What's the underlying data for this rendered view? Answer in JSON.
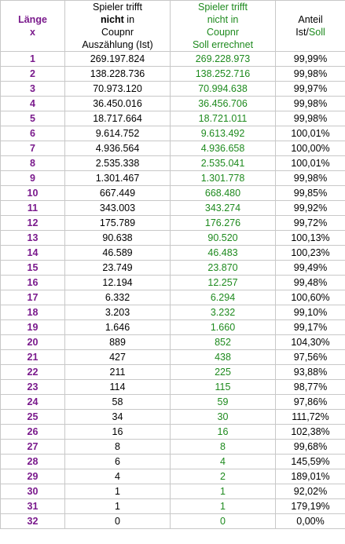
{
  "header": {
    "length": {
      "line1": "Länge",
      "line2": "x"
    },
    "ist": {
      "line1": "Spieler trifft",
      "line2_bold": "nicht",
      "line2_rest": " in",
      "line3": "Coupnr",
      "line4": "Auszählung (Ist)"
    },
    "soll": {
      "line1": "Spieler trifft",
      "line2": "nicht in",
      "line3": "Coupnr",
      "line4": "Soll errechnet"
    },
    "ratio": {
      "line1": "Anteil",
      "line2_black": "Ist/",
      "line2_green": "Soll"
    }
  },
  "colors": {
    "length": "#7a1a8c",
    "soll": "#1e8a1e"
  },
  "rows": [
    {
      "len": "1",
      "ist": "269.197.824",
      "soll": "269.228.973",
      "ratio": "99,99%"
    },
    {
      "len": "2",
      "ist": "138.228.736",
      "soll": "138.252.716",
      "ratio": "99,98%"
    },
    {
      "len": "3",
      "ist": "70.973.120",
      "soll": "70.994.638",
      "ratio": "99,97%"
    },
    {
      "len": "4",
      "ist": "36.450.016",
      "soll": "36.456.706",
      "ratio": "99,98%"
    },
    {
      "len": "5",
      "ist": "18.717.664",
      "soll": "18.721.011",
      "ratio": "99,98%"
    },
    {
      "len": "6",
      "ist": "9.614.752",
      "soll": "9.613.492",
      "ratio": "100,01%"
    },
    {
      "len": "7",
      "ist": "4.936.564",
      "soll": "4.936.658",
      "ratio": "100,00%"
    },
    {
      "len": "8",
      "ist": "2.535.338",
      "soll": "2.535.041",
      "ratio": "100,01%"
    },
    {
      "len": "9",
      "ist": "1.301.467",
      "soll": "1.301.778",
      "ratio": "99,98%"
    },
    {
      "len": "10",
      "ist": "667.449",
      "soll": "668.480",
      "ratio": "99,85%"
    },
    {
      "len": "11",
      "ist": "343.003",
      "soll": "343.274",
      "ratio": "99,92%"
    },
    {
      "len": "12",
      "ist": "175.789",
      "soll": "176.276",
      "ratio": "99,72%"
    },
    {
      "len": "13",
      "ist": "90.638",
      "soll": "90.520",
      "ratio": "100,13%"
    },
    {
      "len": "14",
      "ist": "46.589",
      "soll": "46.483",
      "ratio": "100,23%"
    },
    {
      "len": "15",
      "ist": "23.749",
      "soll": "23.870",
      "ratio": "99,49%"
    },
    {
      "len": "16",
      "ist": "12.194",
      "soll": "12.257",
      "ratio": "99,48%"
    },
    {
      "len": "17",
      "ist": "6.332",
      "soll": "6.294",
      "ratio": "100,60%"
    },
    {
      "len": "18",
      "ist": "3.203",
      "soll": "3.232",
      "ratio": "99,10%"
    },
    {
      "len": "19",
      "ist": "1.646",
      "soll": "1.660",
      "ratio": "99,17%"
    },
    {
      "len": "20",
      "ist": "889",
      "soll": "852",
      "ratio": "104,30%"
    },
    {
      "len": "21",
      "ist": "427",
      "soll": "438",
      "ratio": "97,56%"
    },
    {
      "len": "22",
      "ist": "211",
      "soll": "225",
      "ratio": "93,88%"
    },
    {
      "len": "23",
      "ist": "114",
      "soll": "115",
      "ratio": "98,77%"
    },
    {
      "len": "24",
      "ist": "58",
      "soll": "59",
      "ratio": "97,86%"
    },
    {
      "len": "25",
      "ist": "34",
      "soll": "30",
      "ratio": "111,72%"
    },
    {
      "len": "26",
      "ist": "16",
      "soll": "16",
      "ratio": "102,38%"
    },
    {
      "len": "27",
      "ist": "8",
      "soll": "8",
      "ratio": "99,68%"
    },
    {
      "len": "28",
      "ist": "6",
      "soll": "4",
      "ratio": "145,59%"
    },
    {
      "len": "29",
      "ist": "4",
      "soll": "2",
      "ratio": "189,01%"
    },
    {
      "len": "30",
      "ist": "1",
      "soll": "1",
      "ratio": "92,02%"
    },
    {
      "len": "31",
      "ist": "1",
      "soll": "1",
      "ratio": "179,19%"
    },
    {
      "len": "32",
      "ist": "0",
      "soll": "0",
      "ratio": "0,00%"
    }
  ]
}
